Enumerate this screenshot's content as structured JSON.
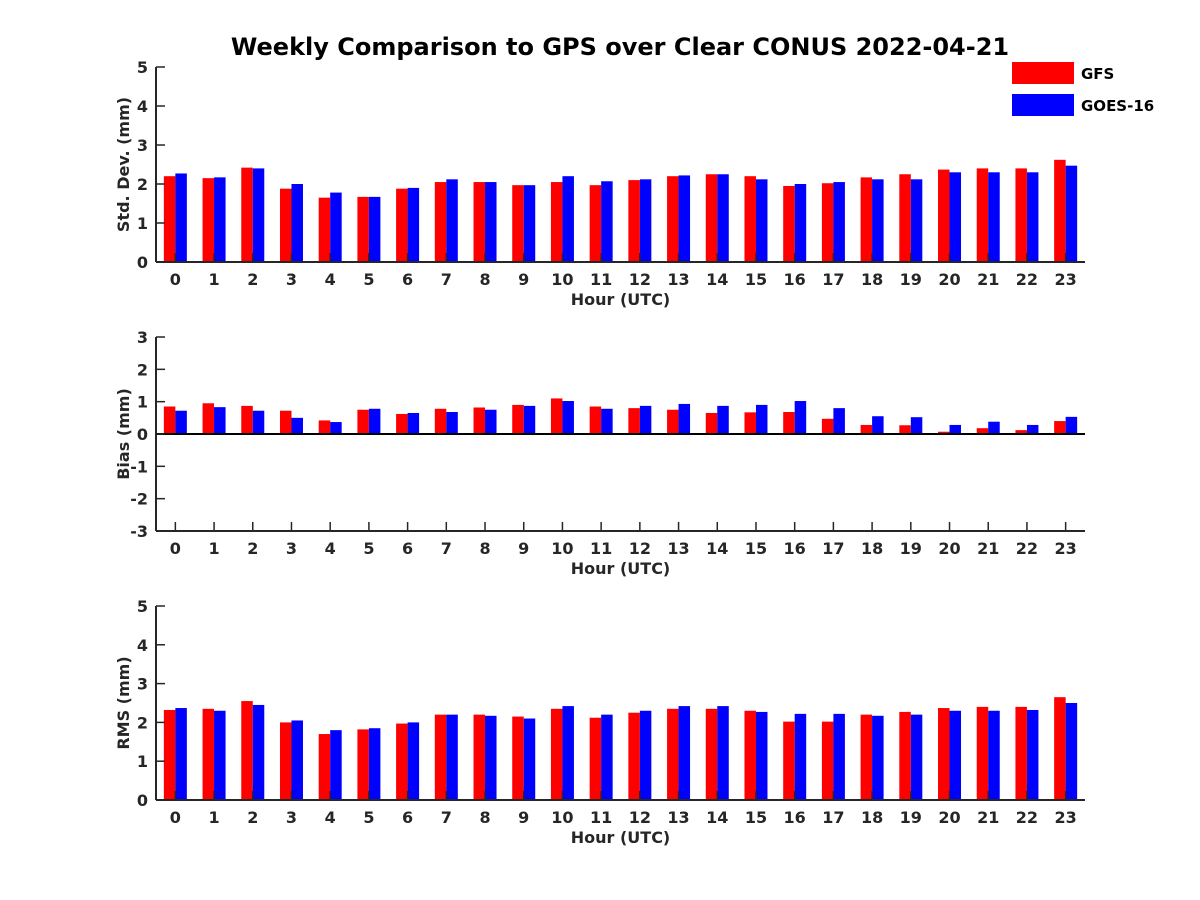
{
  "chart_data": {
    "type": "bar",
    "title": "Weekly Comparison to GPS over Clear CONUS 2022-04-21",
    "legend": {
      "position": "top-right",
      "entries": [
        {
          "name": "GFS",
          "color": "#ff0000"
        },
        {
          "name": "GOES-16",
          "color": "#0000ff"
        }
      ]
    },
    "categories": [
      "0",
      "1",
      "2",
      "3",
      "4",
      "5",
      "6",
      "7",
      "8",
      "9",
      "10",
      "11",
      "12",
      "13",
      "14",
      "15",
      "16",
      "17",
      "18",
      "19",
      "20",
      "21",
      "22",
      "23"
    ],
    "panels": [
      {
        "id": "stddev",
        "xlabel": "Hour (UTC)",
        "ylabel": "Std. Dev. (mm)",
        "ylim": [
          0,
          5
        ],
        "yticks": [
          "0",
          "1",
          "2",
          "3",
          "4",
          "5"
        ],
        "series": [
          {
            "name": "GFS",
            "values": [
              2.2,
              2.15,
              2.42,
              1.88,
              1.65,
              1.67,
              1.88,
              2.05,
              2.05,
              1.97,
              2.05,
              1.97,
              2.1,
              2.2,
              2.25,
              2.2,
              1.95,
              2.02,
              2.17,
              2.25,
              2.37,
              2.4,
              2.4,
              2.62
            ]
          },
          {
            "name": "GOES-16",
            "values": [
              2.27,
              2.17,
              2.4,
              2.0,
              1.78,
              1.67,
              1.9,
              2.12,
              2.05,
              1.97,
              2.2,
              2.07,
              2.12,
              2.22,
              2.25,
              2.12,
              2.0,
              2.05,
              2.12,
              2.12,
              2.3,
              2.3,
              2.3,
              2.47
            ]
          }
        ]
      },
      {
        "id": "bias",
        "xlabel": "Hour (UTC)",
        "ylabel": "Bias (mm)",
        "ylim": [
          -3,
          3
        ],
        "yticks": [
          "-3",
          "-2",
          "-1",
          "0",
          "1",
          "2",
          "3"
        ],
        "series": [
          {
            "name": "GFS",
            "values": [
              0.85,
              0.95,
              0.87,
              0.72,
              0.42,
              0.75,
              0.62,
              0.78,
              0.82,
              0.9,
              1.1,
              0.85,
              0.8,
              0.75,
              0.65,
              0.67,
              0.68,
              0.47,
              0.28,
              0.27,
              0.07,
              0.18,
              0.12,
              0.4
            ]
          },
          {
            "name": "GOES-16",
            "values": [
              0.72,
              0.83,
              0.72,
              0.5,
              0.37,
              0.78,
              0.65,
              0.68,
              0.75,
              0.87,
              1.02,
              0.78,
              0.87,
              0.93,
              0.87,
              0.9,
              1.02,
              0.8,
              0.55,
              0.52,
              0.28,
              0.38,
              0.28,
              0.53
            ]
          }
        ]
      },
      {
        "id": "rms",
        "xlabel": "Hour (UTC)",
        "ylabel": "RMS (mm)",
        "ylim": [
          0,
          5
        ],
        "yticks": [
          "0",
          "1",
          "2",
          "3",
          "4",
          "5"
        ],
        "series": [
          {
            "name": "GFS",
            "values": [
              2.32,
              2.35,
              2.55,
              2.0,
              1.7,
              1.82,
              1.97,
              2.2,
              2.2,
              2.15,
              2.35,
              2.12,
              2.25,
              2.35,
              2.35,
              2.3,
              2.02,
              2.02,
              2.2,
              2.27,
              2.37,
              2.4,
              2.4,
              2.65
            ]
          },
          {
            "name": "GOES-16",
            "values": [
              2.37,
              2.3,
              2.45,
              2.05,
              1.8,
              1.85,
              2.0,
              2.2,
              2.17,
              2.1,
              2.42,
              2.2,
              2.3,
              2.42,
              2.42,
              2.27,
              2.22,
              2.22,
              2.17,
              2.2,
              2.3,
              2.3,
              2.32,
              2.5
            ]
          }
        ]
      }
    ]
  }
}
